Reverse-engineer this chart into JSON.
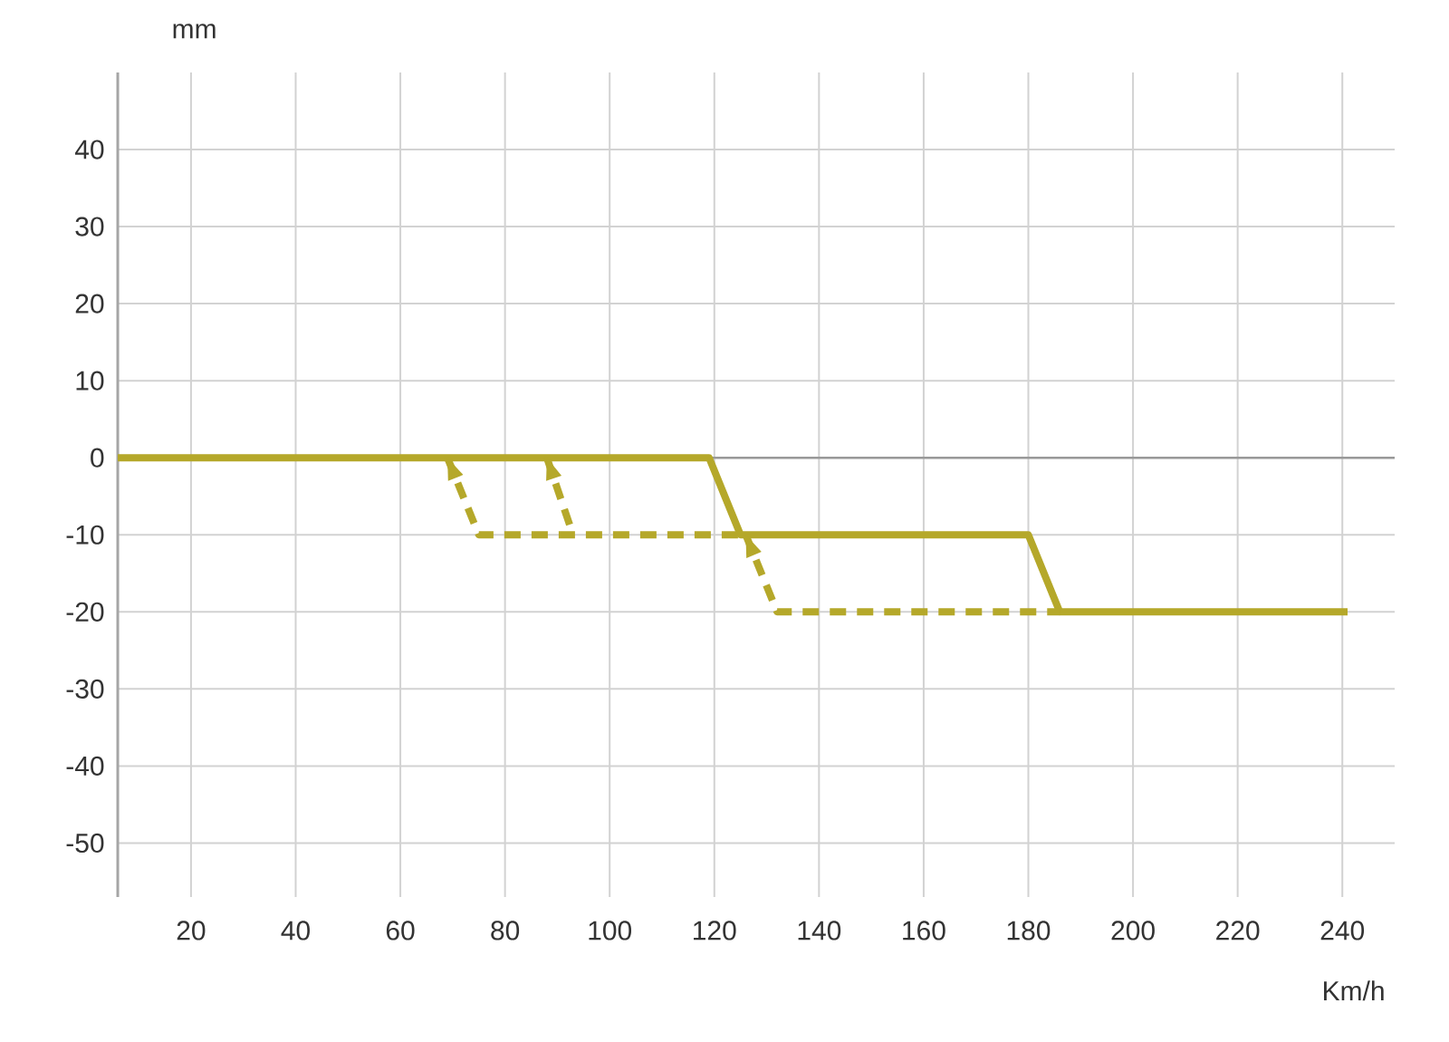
{
  "chart_data": {
    "type": "line",
    "xlabel": "Km/h",
    "ylabel": "mm",
    "xlim": [
      6,
      250
    ],
    "ylim": [
      -57,
      50
    ],
    "xticks": [
      20,
      40,
      60,
      80,
      100,
      120,
      140,
      160,
      180,
      200,
      220,
      240
    ],
    "yticks": [
      -50,
      -40,
      -30,
      -20,
      -10,
      0,
      10,
      20,
      30,
      40
    ],
    "grid": true,
    "marker": "none",
    "ref_lines": [
      {
        "axis": "y",
        "value": 0,
        "color": "#999999"
      }
    ],
    "series": [
      {
        "color": "#b5a82a",
        "line_style": "solid",
        "x": [
          6,
          119,
          125,
          180,
          186,
          241
        ],
        "values": [
          0,
          0,
          -10,
          -10,
          -20,
          -20
        ]
      },
      {
        "color": "#b5a82a",
        "line_style": "dashed",
        "x": [
          69,
          75,
          125
        ],
        "values": [
          0,
          -10,
          -10
        ]
      },
      {
        "color": "#b5a82a",
        "line_style": "dashed",
        "x": [
          88,
          93
        ],
        "values": [
          0,
          -10
        ]
      },
      {
        "color": "#b5a82a",
        "line_style": "dashed",
        "x": [
          126,
          132,
          186
        ],
        "values": [
          -10,
          -20,
          -20
        ]
      }
    ]
  }
}
